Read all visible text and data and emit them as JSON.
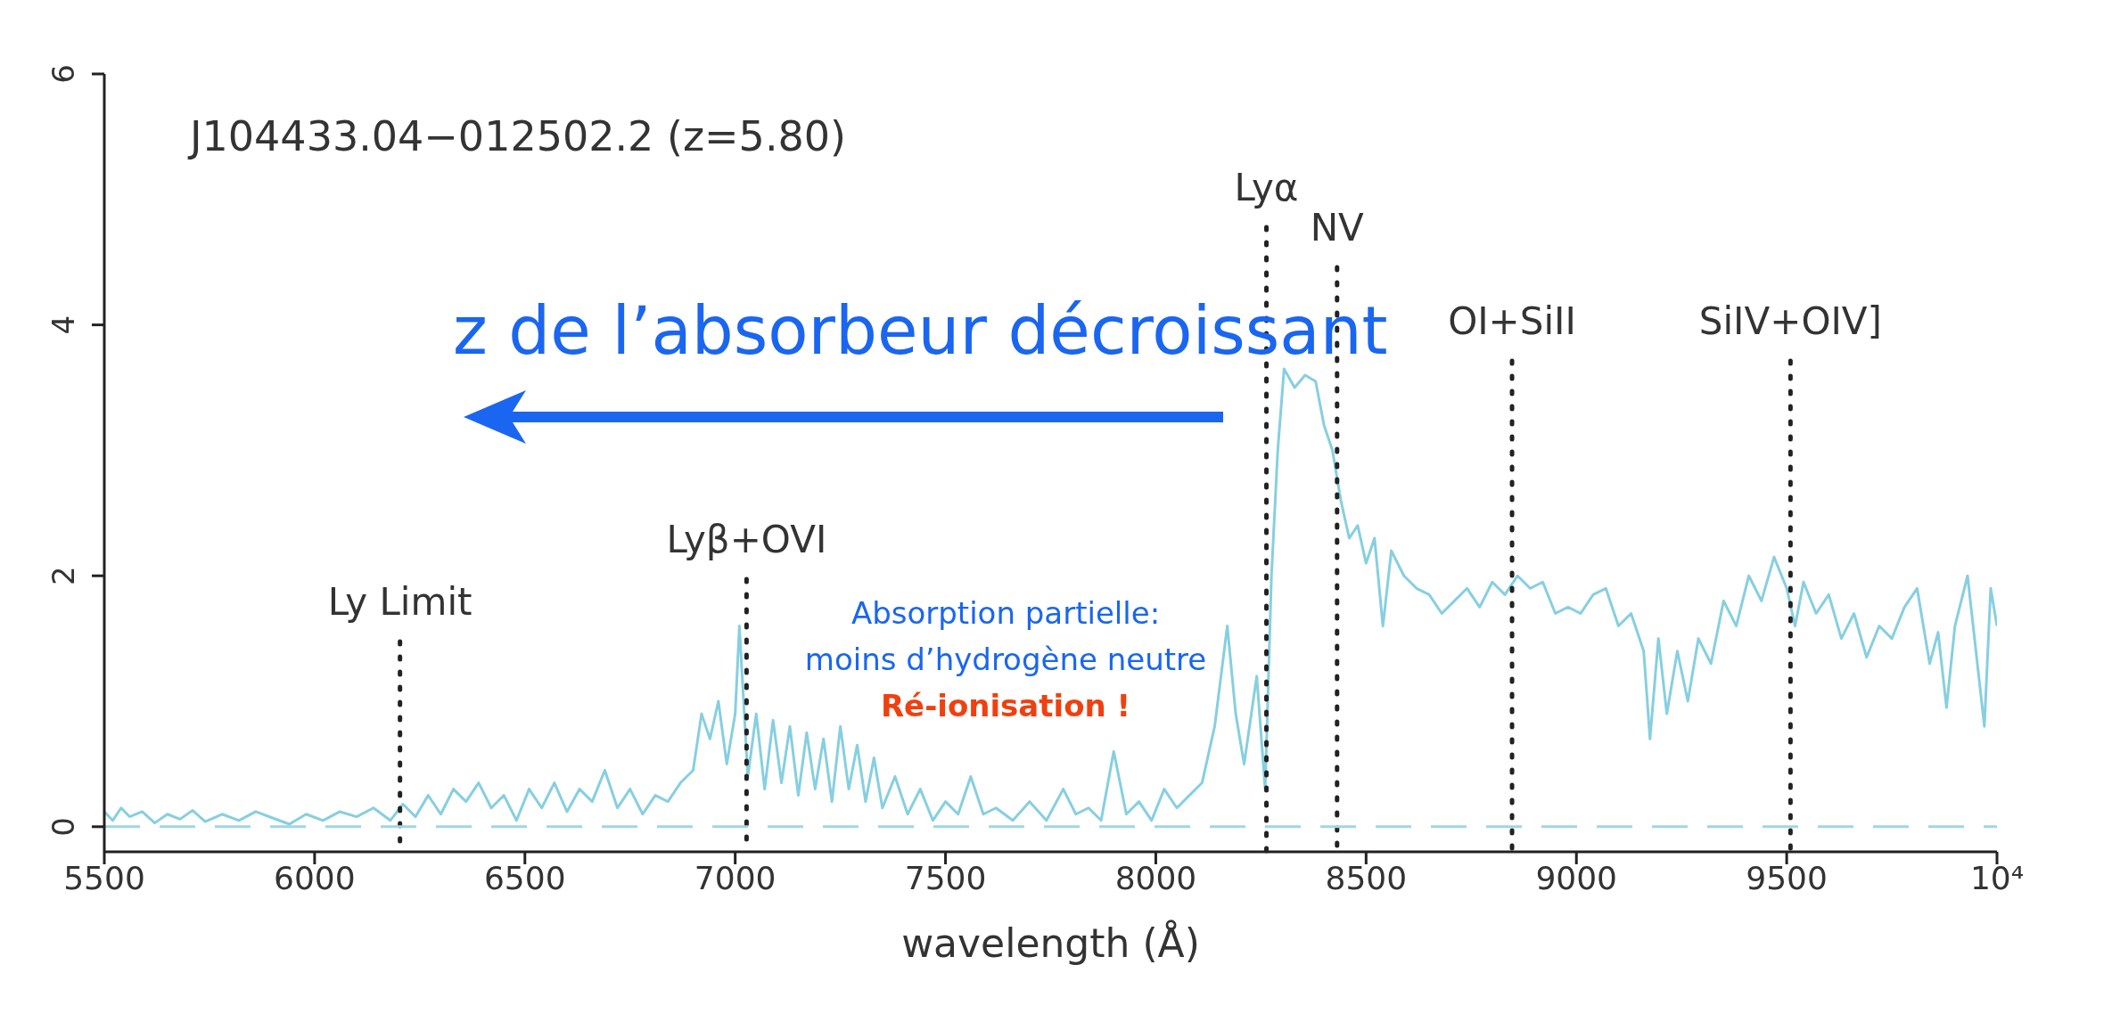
{
  "chart_data": {
    "type": "line",
    "xlabel": "wavelength (Å)",
    "xlim": [
      5500,
      10000
    ],
    "xticks": [
      5500,
      6000,
      6500,
      7000,
      7500,
      8000,
      8500,
      9000,
      9500,
      {
        "value": 10000,
        "label": "10⁴"
      }
    ],
    "ylim": [
      -0.2,
      6
    ],
    "yticks": [
      0,
      2,
      4,
      6
    ],
    "series": [
      {
        "color": "#86cfe0",
        "x": [
          5500,
          5520,
          5540,
          5560,
          5590,
          5620,
          5650,
          5680,
          5710,
          5740,
          5780,
          5820,
          5860,
          5900,
          5940,
          5980,
          6020,
          6060,
          6100,
          6140,
          6180,
          6210,
          6240,
          6270,
          6300,
          6330,
          6360,
          6390,
          6420,
          6450,
          6480,
          6510,
          6540,
          6570,
          6600,
          6630,
          6660,
          6690,
          6720,
          6750,
          6780,
          6810,
          6840,
          6870,
          6900,
          6920,
          6940,
          6960,
          6980,
          7000,
          7010,
          7030,
          7050,
          7070,
          7090,
          7110,
          7130,
          7150,
          7170,
          7190,
          7210,
          7230,
          7250,
          7270,
          7290,
          7310,
          7330,
          7350,
          7380,
          7410,
          7440,
          7470,
          7500,
          7530,
          7560,
          7590,
          7620,
          7660,
          7700,
          7740,
          7780,
          7810,
          7840,
          7870,
          7900,
          7930,
          7960,
          7990,
          8020,
          8050,
          8080,
          8110,
          8140,
          8170,
          8190,
          8210,
          8240,
          8260,
          8275,
          8290,
          8305,
          8330,
          8355,
          8380,
          8400,
          8420,
          8440,
          8460,
          8480,
          8500,
          8520,
          8540,
          8560,
          8590,
          8620,
          8650,
          8680,
          8710,
          8740,
          8770,
          8800,
          8830,
          8860,
          8890,
          8920,
          8950,
          8980,
          9010,
          9040,
          9070,
          9100,
          9130,
          9160,
          9175,
          9195,
          9215,
          9240,
          9265,
          9290,
          9320,
          9350,
          9380,
          9410,
          9440,
          9470,
          9500,
          9520,
          9540,
          9570,
          9600,
          9630,
          9660,
          9690,
          9720,
          9750,
          9780,
          9810,
          9840,
          9860,
          9880,
          9900,
          9930,
          9950,
          9970,
          9985,
          10000
        ],
        "values": [
          0.12,
          0.05,
          0.15,
          0.08,
          0.12,
          0.03,
          0.1,
          0.06,
          0.13,
          0.04,
          0.1,
          0.05,
          0.12,
          0.07,
          0.02,
          0.1,
          0.05,
          0.12,
          0.08,
          0.15,
          0.05,
          0.18,
          0.08,
          0.25,
          0.1,
          0.3,
          0.2,
          0.35,
          0.15,
          0.25,
          0.05,
          0.3,
          0.15,
          0.35,
          0.12,
          0.3,
          0.2,
          0.45,
          0.15,
          0.3,
          0.1,
          0.25,
          0.2,
          0.35,
          0.45,
          0.9,
          0.7,
          1.0,
          0.5,
          0.9,
          1.6,
          0.4,
          0.9,
          0.3,
          0.85,
          0.35,
          0.8,
          0.25,
          0.75,
          0.3,
          0.7,
          0.2,
          0.8,
          0.3,
          0.65,
          0.2,
          0.55,
          0.15,
          0.4,
          0.1,
          0.3,
          0.05,
          0.2,
          0.1,
          0.4,
          0.1,
          0.15,
          0.05,
          0.2,
          0.05,
          0.3,
          0.1,
          0.15,
          0.05,
          0.6,
          0.1,
          0.2,
          0.05,
          0.3,
          0.15,
          0.25,
          0.35,
          0.8,
          1.6,
          0.9,
          0.5,
          1.2,
          0.3,
          2.0,
          3.0,
          3.65,
          3.5,
          3.6,
          3.55,
          3.2,
          3.0,
          2.6,
          2.3,
          2.4,
          2.1,
          2.3,
          1.6,
          2.2,
          2.0,
          1.9,
          1.85,
          1.7,
          1.8,
          1.9,
          1.75,
          1.95,
          1.85,
          2.0,
          1.9,
          1.95,
          1.7,
          1.75,
          1.7,
          1.85,
          1.9,
          1.6,
          1.7,
          1.4,
          0.7,
          1.5,
          0.9,
          1.4,
          1.0,
          1.5,
          1.3,
          1.8,
          1.6,
          2.0,
          1.8,
          2.15,
          1.9,
          1.6,
          1.95,
          1.7,
          1.85,
          1.5,
          1.7,
          1.35,
          1.6,
          1.5,
          1.75,
          1.9,
          1.3,
          1.55,
          0.95,
          1.6,
          2.0,
          1.4,
          0.8,
          1.9,
          1.6
        ]
      }
    ],
    "ref_lines": [
      {
        "axis": "x",
        "value": 6203,
        "label": "Ly Limit",
        "color": "#222222",
        "line_style": "dotted"
      },
      {
        "axis": "x",
        "value": 7027,
        "label": "Lyβ+OVI",
        "color": "#222222",
        "line_style": "dotted"
      },
      {
        "axis": "x",
        "value": 8263,
        "label": "Lyα",
        "color": "#222222",
        "line_style": "dotted"
      },
      {
        "axis": "x",
        "value": 8431,
        "label": "NV",
        "color": "#222222",
        "line_style": "dotted"
      },
      {
        "axis": "x",
        "value": 8847,
        "label": "OI+SiII",
        "color": "#222222",
        "line_style": "dotted"
      },
      {
        "axis": "x",
        "value": 9509,
        "label": "SiIV+OIV]",
        "color": "#222222",
        "line_style": "dotted"
      },
      {
        "axis": "y",
        "value": 0,
        "color": "#9fd6e3",
        "line_style": "dashed"
      }
    ],
    "annotations": [
      "J104433.04−012502.2 (z=5.80)",
      "z de l’absorbeur décroissant",
      "Absorption partielle:",
      "moins d’hydrogène neutre",
      "Ré-ionisation !"
    ]
  }
}
